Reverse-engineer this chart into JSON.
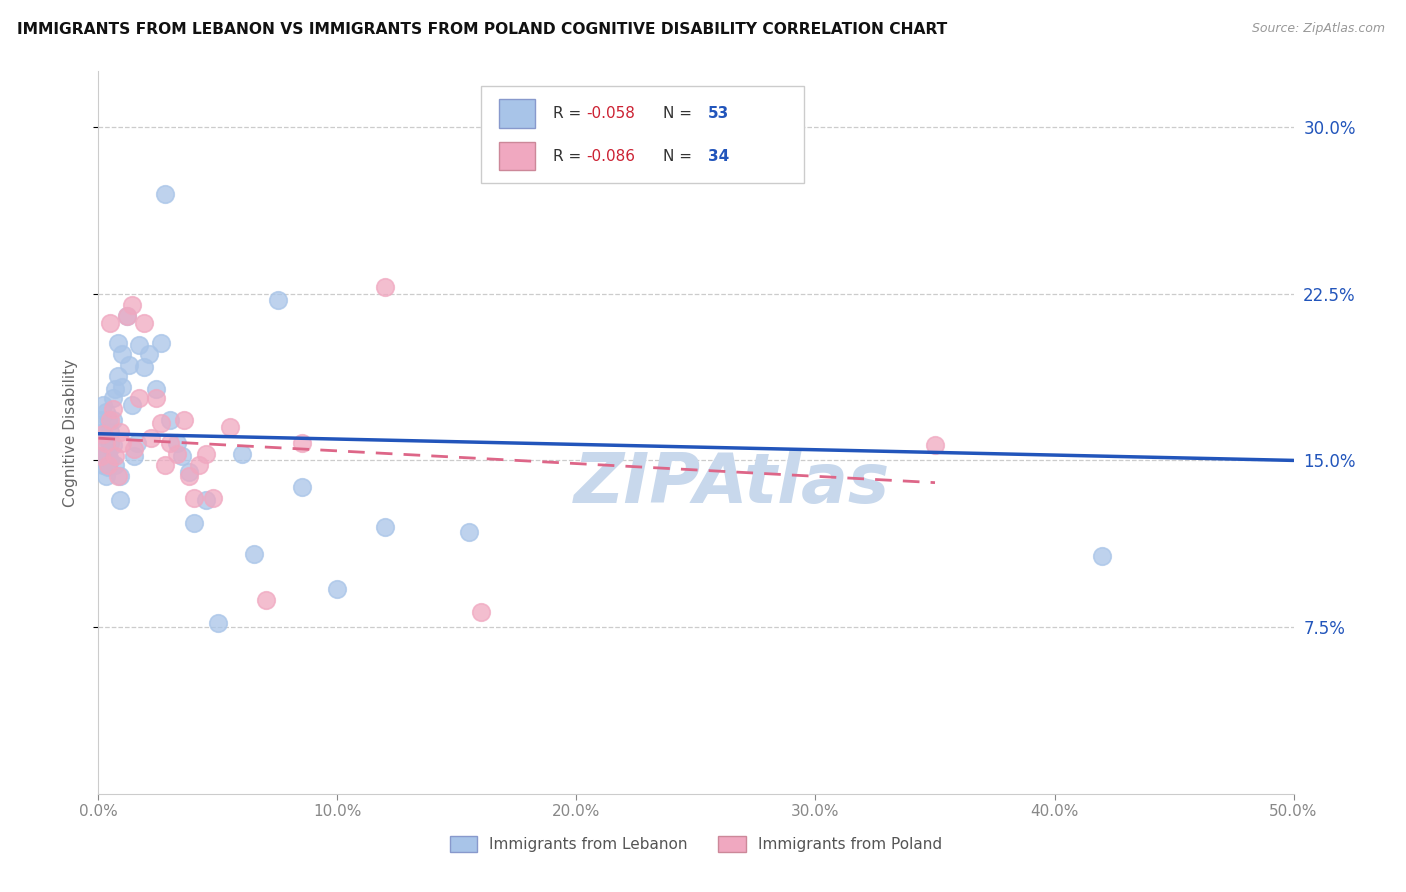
{
  "title": "IMMIGRANTS FROM LEBANON VS IMMIGRANTS FROM POLAND COGNITIVE DISABILITY CORRELATION CHART",
  "source": "Source: ZipAtlas.com",
  "ylabel": "Cognitive Disability",
  "xlim": [
    0.0,
    0.5
  ],
  "ylim": [
    0.0,
    0.325
  ],
  "yticks": [
    0.075,
    0.15,
    0.225,
    0.3
  ],
  "ytick_labels": [
    "7.5%",
    "15.0%",
    "22.5%",
    "30.0%"
  ],
  "xticks": [
    0.0,
    0.1,
    0.2,
    0.3,
    0.4,
    0.5
  ],
  "xtick_labels": [
    "0.0%",
    "10.0%",
    "20.0%",
    "30.0%",
    "40.0%",
    "50.0%"
  ],
  "lebanon_R": -0.058,
  "lebanon_N": 53,
  "poland_R": -0.086,
  "poland_N": 34,
  "legend_label_1": "Immigrants from Lebanon",
  "legend_label_2": "Immigrants from Poland",
  "blue_dot_color": "#a8c4e8",
  "pink_dot_color": "#f0a8c0",
  "blue_line_color": "#2255bb",
  "pink_line_color": "#dd6688",
  "text_color_dark": "#333333",
  "text_color_red": "#cc2233",
  "text_color_blue": "#2255bb",
  "watermark_color": "#c8d8ec",
  "watermark": "ZIPAtlas",
  "grid_color": "#cccccc",
  "lebanon_line_x0": 0.0,
  "lebanon_line_y0": 0.162,
  "lebanon_line_x1": 0.5,
  "lebanon_line_y1": 0.15,
  "poland_line_x0": 0.0,
  "poland_line_y0": 0.16,
  "poland_line_x1": 0.35,
  "poland_line_y1": 0.14,
  "lebanon_x": [
    0.001,
    0.001,
    0.001,
    0.002,
    0.002,
    0.002,
    0.003,
    0.003,
    0.003,
    0.003,
    0.004,
    0.004,
    0.004,
    0.005,
    0.005,
    0.005,
    0.006,
    0.006,
    0.006,
    0.007,
    0.007,
    0.008,
    0.008,
    0.009,
    0.009,
    0.01,
    0.01,
    0.012,
    0.013,
    0.014,
    0.015,
    0.016,
    0.017,
    0.019,
    0.021,
    0.024,
    0.026,
    0.028,
    0.03,
    0.033,
    0.035,
    0.038,
    0.04,
    0.045,
    0.05,
    0.06,
    0.065,
    0.075,
    0.085,
    0.1,
    0.12,
    0.155,
    0.42
  ],
  "lebanon_y": [
    0.168,
    0.158,
    0.15,
    0.175,
    0.163,
    0.148,
    0.172,
    0.16,
    0.153,
    0.143,
    0.168,
    0.153,
    0.147,
    0.163,
    0.158,
    0.15,
    0.178,
    0.168,
    0.157,
    0.182,
    0.148,
    0.203,
    0.188,
    0.143,
    0.132,
    0.198,
    0.183,
    0.215,
    0.193,
    0.175,
    0.152,
    0.158,
    0.202,
    0.192,
    0.198,
    0.182,
    0.203,
    0.27,
    0.168,
    0.158,
    0.152,
    0.145,
    0.122,
    0.132,
    0.077,
    0.153,
    0.108,
    0.222,
    0.138,
    0.092,
    0.12,
    0.118,
    0.107
  ],
  "poland_x": [
    0.001,
    0.002,
    0.003,
    0.004,
    0.005,
    0.005,
    0.006,
    0.007,
    0.008,
    0.009,
    0.01,
    0.012,
    0.014,
    0.015,
    0.017,
    0.019,
    0.022,
    0.024,
    0.026,
    0.028,
    0.03,
    0.033,
    0.036,
    0.038,
    0.04,
    0.042,
    0.045,
    0.048,
    0.055,
    0.07,
    0.085,
    0.12,
    0.16,
    0.35
  ],
  "poland_y": [
    0.152,
    0.162,
    0.158,
    0.148,
    0.168,
    0.212,
    0.173,
    0.152,
    0.143,
    0.163,
    0.158,
    0.215,
    0.22,
    0.155,
    0.178,
    0.212,
    0.16,
    0.178,
    0.167,
    0.148,
    0.158,
    0.153,
    0.168,
    0.143,
    0.133,
    0.148,
    0.153,
    0.133,
    0.165,
    0.087,
    0.158,
    0.228,
    0.082,
    0.157
  ]
}
